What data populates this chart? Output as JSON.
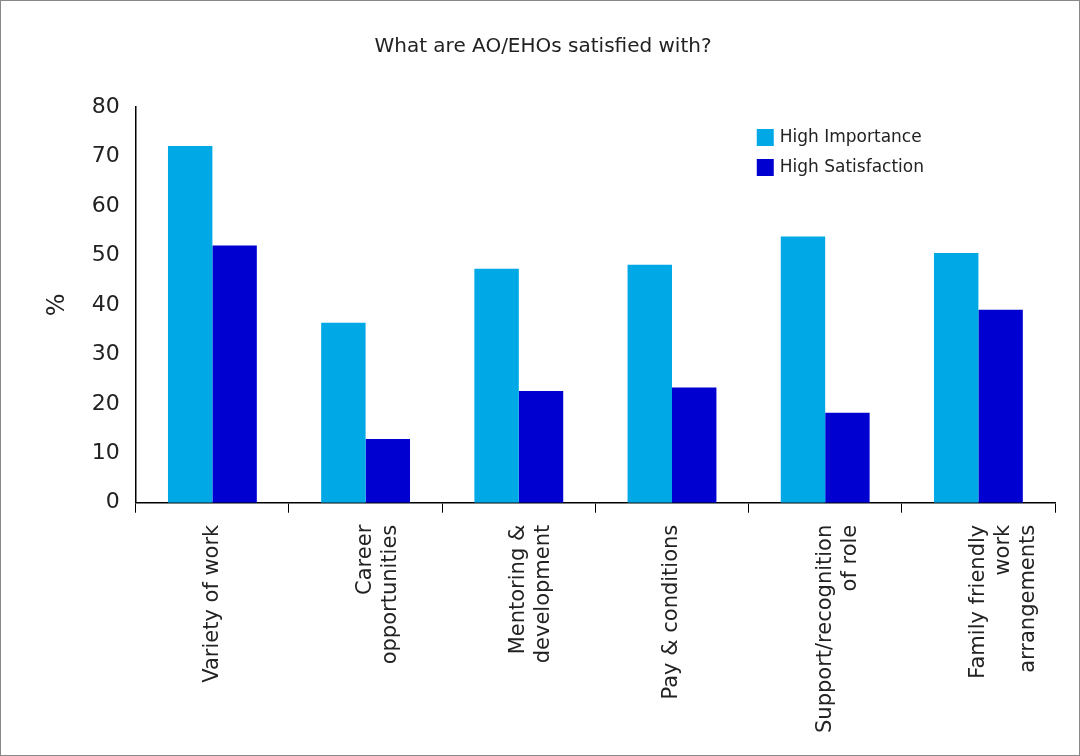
{
  "chart_data": {
    "type": "bar",
    "title": "What are AO/EHOs satisfied with?",
    "ylabel": "%",
    "categories": [
      "Variety of work",
      "Career opportunities",
      "Mentoring & development",
      "Pay & conditions",
      "Support/recognition of role",
      "Family friendly work arrangements"
    ],
    "series": [
      {
        "name": "High Importance",
        "color": "#00a9e6",
        "values": [
          72.1,
          36.4,
          47.3,
          48.1,
          53.8,
          50.5
        ]
      },
      {
        "name": "High Satisfaction",
        "color": "#0000d0",
        "values": [
          52.0,
          12.9,
          22.6,
          23.3,
          18.2,
          39.0
        ]
      }
    ],
    "ylim": [
      0,
      80
    ],
    "yticks": [
      0,
      10,
      20,
      30,
      40,
      50,
      60,
      70,
      80
    ],
    "grid": false,
    "legend": "top right"
  }
}
